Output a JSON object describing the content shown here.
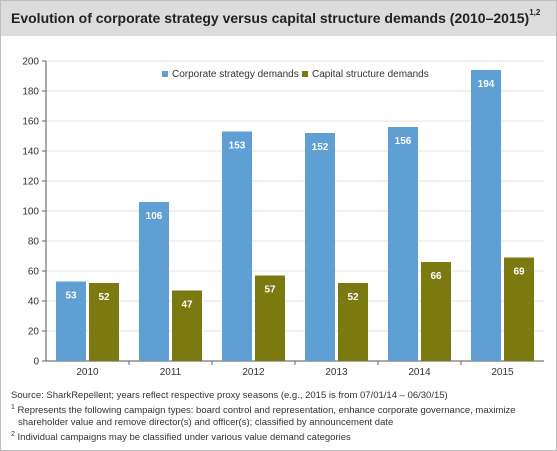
{
  "title": {
    "text": "Evolution of corporate strategy versus capital structure demands (2010–2015)",
    "superscript": "1,2"
  },
  "chart_data": {
    "type": "bar",
    "categories": [
      "2010",
      "2011",
      "2012",
      "2013",
      "2014",
      "2015"
    ],
    "series": [
      {
        "name": "Corporate strategy demands",
        "values": [
          53,
          106,
          153,
          152,
          156,
          194
        ],
        "color": "#5f9fd3"
      },
      {
        "name": "Capital structure demands",
        "values": [
          52,
          47,
          57,
          52,
          66,
          69
        ],
        "color": "#7a7a10"
      }
    ],
    "ylim": [
      0,
      200
    ],
    "yticks": [
      "0",
      "20",
      "40",
      "60",
      "80",
      "100",
      "120",
      "140",
      "160",
      "180",
      "200"
    ],
    "grid": true,
    "legend": "top-center",
    "data_labels": true,
    "xlabel": "",
    "ylabel": ""
  },
  "footnotes": {
    "source": "Source: SharkRepellent; years reflect respective proxy seasons (e.g., 2015 is from 07/01/14 – 06/30/15)",
    "note1_marker": "1",
    "note1_line1": "Represents the following campaign types: board control and representation, enhance corporate governance, maximize",
    "note1_line2": "shareholder value and remove director(s) and officer(s); classified by announcement date",
    "note2_marker": "2",
    "note2_line1": "Individual campaigns may be classified under various value demand categories"
  }
}
